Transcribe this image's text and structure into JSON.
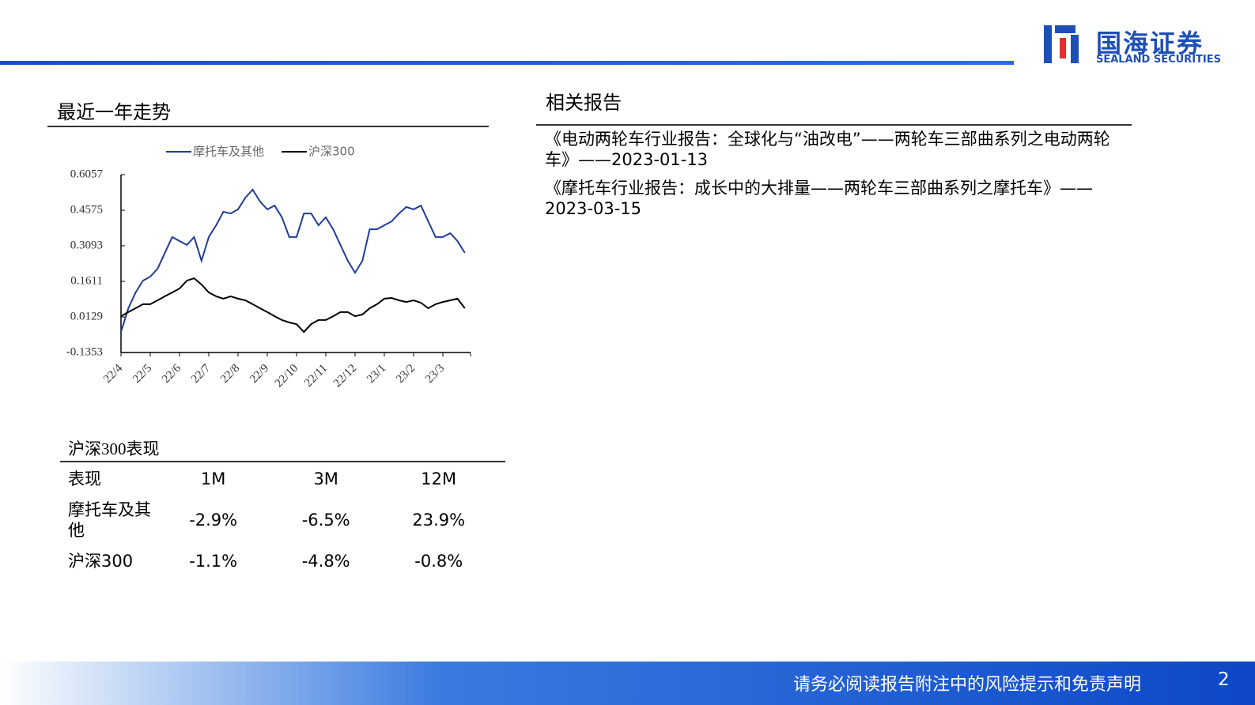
{
  "header": {
    "logo_cn": "国海证券",
    "logo_en": "SEALAND SECURITIES"
  },
  "trend_section": {
    "title": "最近一年走势"
  },
  "chart_data": {
    "type": "line",
    "categories": [
      "22/4",
      null,
      null,
      null,
      "22/5",
      null,
      null,
      null,
      "22/6",
      null,
      null,
      null,
      "22/7",
      null,
      null,
      null,
      "22/8",
      null,
      null,
      null,
      "22/9",
      null,
      null,
      null,
      "22/10",
      null,
      null,
      null,
      "22/11",
      null,
      null,
      null,
      "22/12",
      null,
      null,
      null,
      "23/1",
      null,
      null,
      null,
      "23/2",
      null,
      null,
      null,
      "23/3",
      null,
      null,
      null
    ],
    "series": [
      {
        "name": "摩托车及其他",
        "color": "#1f3c99",
        "values": [
          -0.05,
          0.049,
          0.115,
          0.164,
          0.181,
          0.214,
          0.28,
          0.346,
          0.329,
          0.313,
          0.346,
          0.247,
          0.346,
          0.395,
          0.451,
          0.444,
          0.461,
          0.51,
          0.543,
          0.494,
          0.461,
          0.477,
          0.428,
          0.346,
          0.346,
          0.444,
          0.444,
          0.395,
          0.428,
          0.378,
          0.313,
          0.247,
          0.197,
          0.247,
          0.378,
          0.378,
          0.395,
          0.411,
          0.444,
          0.471,
          0.461,
          0.477,
          0.411,
          0.346,
          0.346,
          0.362,
          0.329,
          0.28
        ]
      },
      {
        "name": "沪深300",
        "color": "#000000",
        "values": [
          0.016,
          0.033,
          0.049,
          0.066,
          0.066,
          0.082,
          0.099,
          0.115,
          0.131,
          0.164,
          0.174,
          0.148,
          0.115,
          0.099,
          0.089,
          0.099,
          0.089,
          0.082,
          0.066,
          0.049,
          0.033,
          0.016,
          0.0,
          -0.01,
          -0.017,
          -0.05,
          -0.017,
          0.0,
          0.0,
          0.016,
          0.033,
          0.033,
          0.016,
          0.023,
          0.049,
          0.066,
          0.089,
          0.092,
          0.082,
          0.075,
          0.082,
          0.072,
          0.049,
          0.066,
          0.075,
          0.082,
          0.089,
          0.049
        ]
      }
    ],
    "ylim": [
      -0.1353,
      0.6057
    ],
    "yticks": [
      -0.1353,
      0.0129,
      0.1611,
      0.3093,
      0.4575,
      0.6057
    ],
    "grid": false,
    "legend": "top"
  },
  "performance": {
    "title": "沪深300表现",
    "table": {
      "header": [
        "表现",
        "1M",
        "3M",
        "12M"
      ],
      "rows": [
        [
          "摩托车及其他",
          "-2.9%",
          "-6.5%",
          "23.9%"
        ],
        [
          "沪深300",
          "-1.1%",
          "-4.8%",
          "-0.8%"
        ]
      ]
    }
  },
  "related": {
    "title": "相关报告",
    "items": [
      "《电动两轮车行业报告：全球化与“油改电”——两轮车三部曲系列之电动两轮车》——2023-01-13",
      "《摩托车行业报告：成长中的大排量——两轮车三部曲系列之摩托车》——2023-03-15"
    ]
  },
  "footer": {
    "disclaimer": "请务必阅读报告附注中的风险提示和免责声明",
    "page": "2"
  }
}
